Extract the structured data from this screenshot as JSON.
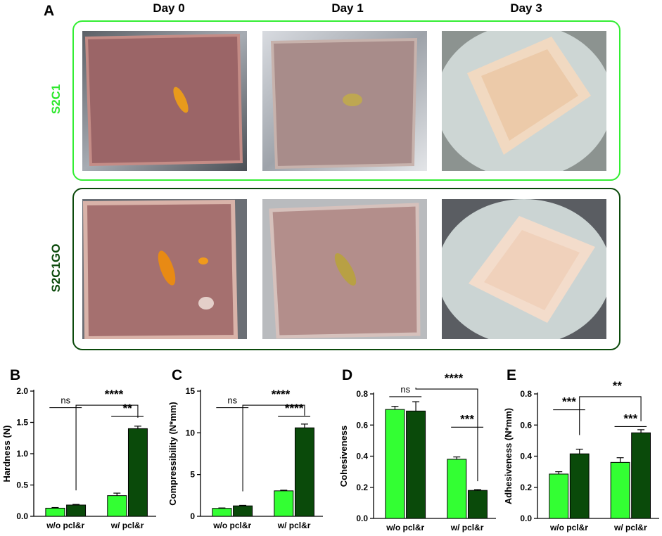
{
  "panel_a": {
    "letter": "A",
    "days": [
      "Day 0",
      "Day 1",
      "Day  3"
    ],
    "rows": [
      {
        "label": "S2C1",
        "color": "#2ee82e"
      },
      {
        "label": "S2C1GO",
        "color": "#0b4a0b"
      }
    ],
    "photo_colors": {
      "foil": "#8a8f96",
      "tissue_day0": "#a36a6a",
      "tissue_day1": "#a88f8c",
      "tissue_day3": "#f2dcc6",
      "plate": "#c9d2d0",
      "stain": "#e8a020"
    }
  },
  "series_colors": {
    "w/o GO": "#33ff33",
    "w/ GO": "#0a4a0a"
  },
  "chart_data": [
    {
      "letter": "B",
      "type": "bar",
      "categories": [
        "w/o pcl&r",
        "w/ pcl&r"
      ],
      "series": [
        {
          "values": [
            0.13,
            0.33
          ],
          "errors": [
            0.01,
            0.04
          ]
        },
        {
          "values": [
            0.18,
            1.4
          ],
          "errors": [
            0.01,
            0.04
          ]
        }
      ],
      "ylabel": "Hardness (N)",
      "ylim": [
        0,
        2.0
      ],
      "yticks": [
        "0.0",
        "0.5",
        "1.0",
        "1.5",
        "2.0"
      ],
      "ytick_values": [
        0,
        0.5,
        1.0,
        1.5,
        2.0
      ],
      "annotations": [
        "ns",
        "**",
        "****"
      ]
    },
    {
      "letter": "C",
      "type": "bar",
      "categories": [
        "w/o pcl&r",
        "w/ pcl&r"
      ],
      "series": [
        {
          "values": [
            0.95,
            3.05
          ],
          "errors": [
            0.05,
            0.08
          ]
        },
        {
          "values": [
            1.25,
            10.6
          ],
          "errors": [
            0.06,
            0.45
          ]
        }
      ],
      "ylabel": "Compressibility (N*mm)",
      "ylim": [
        0,
        15
      ],
      "yticks": [
        "0",
        "5",
        "10",
        "15"
      ],
      "ytick_values": [
        0,
        5,
        10,
        15
      ],
      "annotations": [
        "ns",
        "****",
        "****"
      ]
    },
    {
      "letter": "D",
      "type": "bar",
      "categories": [
        "w/o pcl&r",
        "w/ pcl&r"
      ],
      "series": [
        {
          "values": [
            0.7,
            0.38
          ],
          "errors": [
            0.02,
            0.015
          ]
        },
        {
          "values": [
            0.69,
            0.18
          ],
          "errors": [
            0.06,
            0.005
          ]
        }
      ],
      "ylabel": "Cohesiveness",
      "ylim": [
        0,
        0.8
      ],
      "yticks": [
        "0.0",
        "0.2",
        "0.4",
        "0.6",
        "0.8"
      ],
      "ytick_values": [
        0,
        0.2,
        0.4,
        0.6,
        0.8
      ],
      "annotations": [
        "ns",
        "***",
        "****"
      ]
    },
    {
      "letter": "E",
      "type": "bar",
      "categories": [
        "w/o pcl&r",
        "w/ pcl&r"
      ],
      "series": [
        {
          "values": [
            0.285,
            0.36
          ],
          "errors": [
            0.015,
            0.03
          ]
        },
        {
          "values": [
            0.415,
            0.55
          ],
          "errors": [
            0.03,
            0.02
          ]
        }
      ],
      "ylabel": "Adhesiveness (N*mm)",
      "ylim": [
        0,
        0.8
      ],
      "yticks": [
        "0.0",
        "0.2",
        "0.4",
        "0.6",
        "0.8"
      ],
      "ytick_values": [
        0,
        0.2,
        0.4,
        0.6,
        0.8
      ],
      "annotations": [
        "**",
        "***",
        "**"
      ]
    }
  ]
}
